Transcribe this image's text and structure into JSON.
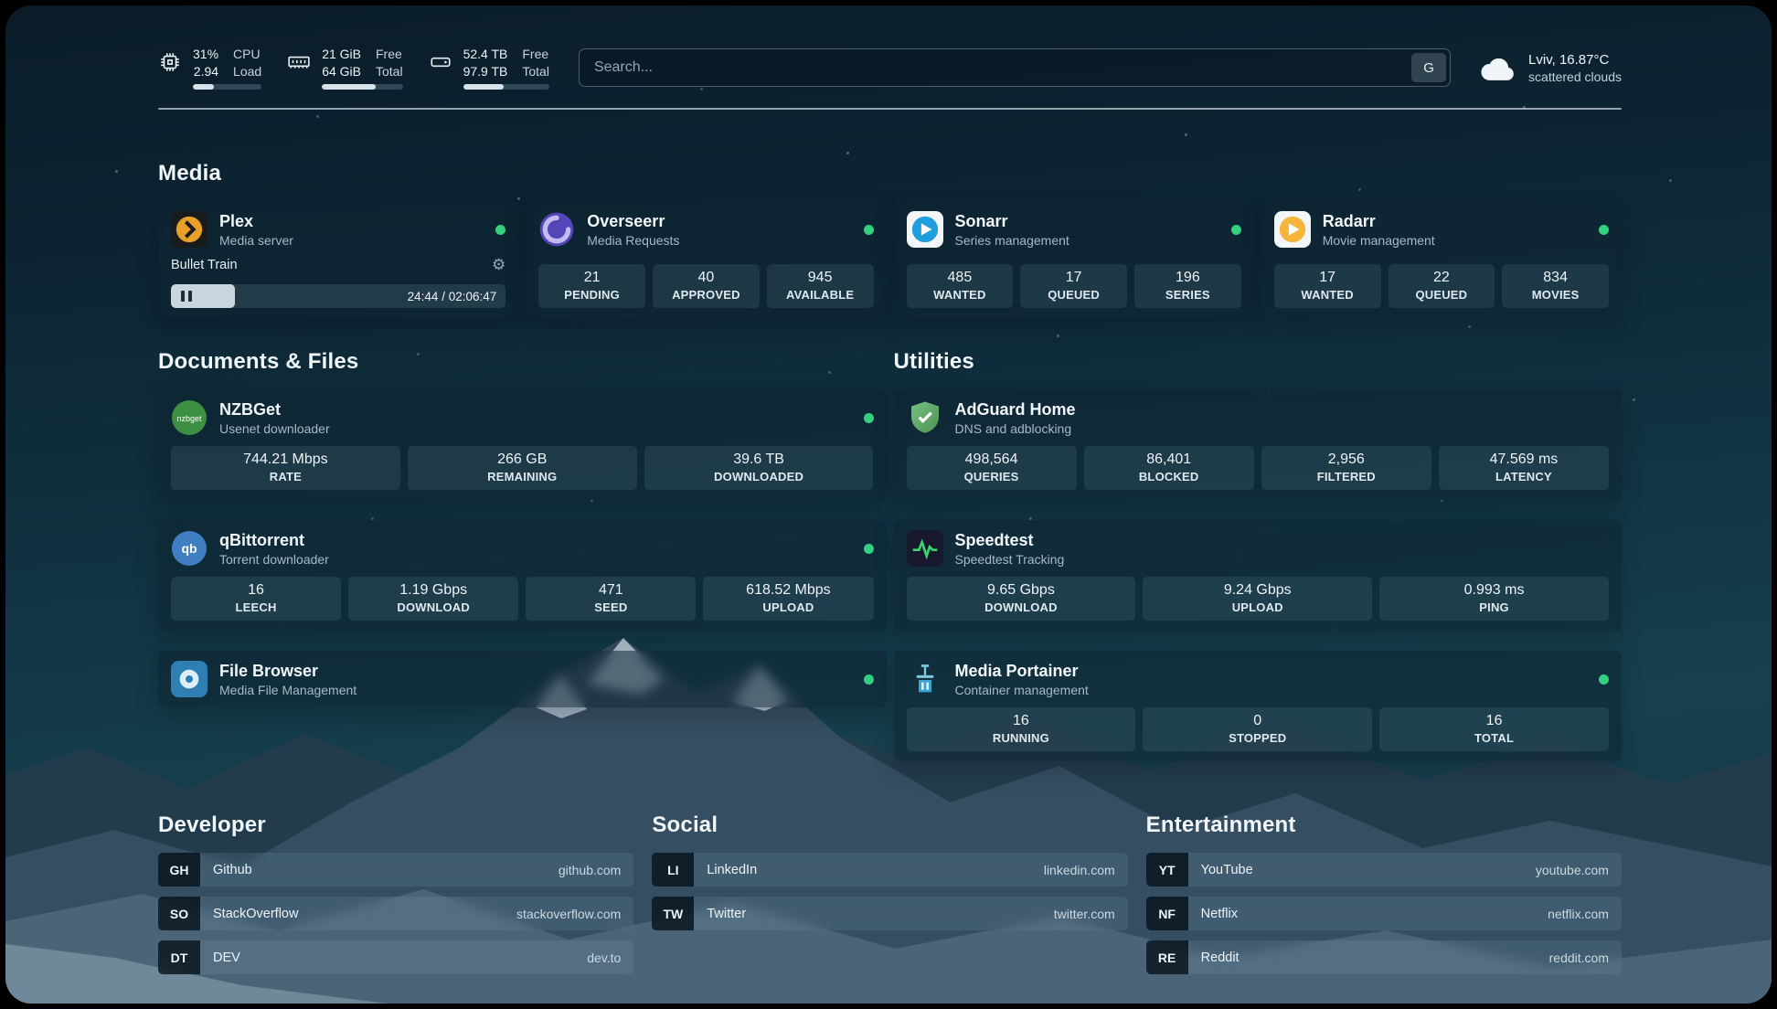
{
  "colors": {
    "status_online": "#35d07f"
  },
  "header": {
    "cpu": {
      "percent": "31%",
      "load": "2.94",
      "percent_label": "CPU",
      "load_label": "Load",
      "bar_percent": 31
    },
    "memory": {
      "free": "21 GiB",
      "total": "64 GiB",
      "free_label": "Free",
      "total_label": "Total",
      "bar_percent": 67
    },
    "disk": {
      "free": "52.4 TB",
      "total": "97.9 TB",
      "free_label": "Free",
      "total_label": "Total",
      "bar_percent": 47
    },
    "search": {
      "placeholder": "Search...",
      "button_label": "G"
    },
    "weather": {
      "location": "Lviv, 16.87°C",
      "condition": "scattered clouds"
    }
  },
  "media": {
    "title": "Media",
    "plex": {
      "name": "Plex",
      "description": "Media server",
      "now_playing": "Bullet Train",
      "time": "24:44 / 02:06:47",
      "progress_percent": 19
    },
    "overseerr": {
      "name": "Overseerr",
      "description": "Media Requests",
      "stats": [
        {
          "value": "21",
          "label": "PENDING"
        },
        {
          "value": "40",
          "label": "APPROVED"
        },
        {
          "value": "945",
          "label": "AVAILABLE"
        }
      ]
    },
    "sonarr": {
      "name": "Sonarr",
      "description": "Series management",
      "stats": [
        {
          "value": "485",
          "label": "WANTED"
        },
        {
          "value": "17",
          "label": "QUEUED"
        },
        {
          "value": "196",
          "label": "SERIES"
        }
      ]
    },
    "radarr": {
      "name": "Radarr",
      "description": "Movie management",
      "stats": [
        {
          "value": "17",
          "label": "WANTED"
        },
        {
          "value": "22",
          "label": "QUEUED"
        },
        {
          "value": "834",
          "label": "MOVIES"
        }
      ]
    }
  },
  "documents": {
    "title": "Documents & Files",
    "nzbget": {
      "name": "NZBGet",
      "description": "Usenet downloader",
      "icon_text": "nzbget",
      "stats": [
        {
          "value": "744.21 Mbps",
          "label": "RATE"
        },
        {
          "value": "266 GB",
          "label": "REMAINING"
        },
        {
          "value": "39.6 TB",
          "label": "DOWNLOADED"
        }
      ]
    },
    "qbittorrent": {
      "name": "qBittorrent",
      "description": "Torrent downloader",
      "icon_text": "qb",
      "stats": [
        {
          "value": "16",
          "label": "LEECH"
        },
        {
          "value": "1.19 Gbps",
          "label": "DOWNLOAD"
        },
        {
          "value": "471",
          "label": "SEED"
        },
        {
          "value": "618.52 Mbps",
          "label": "UPLOAD"
        }
      ]
    },
    "filebrowser": {
      "name": "File Browser",
      "description": "Media File Management"
    }
  },
  "utilities": {
    "title": "Utilities",
    "adguard": {
      "name": "AdGuard Home",
      "description": "DNS and adblocking",
      "stats": [
        {
          "value": "498,564",
          "label": "QUERIES"
        },
        {
          "value": "86,401",
          "label": "BLOCKED"
        },
        {
          "value": "2,956",
          "label": "FILTERED"
        },
        {
          "value": "47.569 ms",
          "label": "LATENCY"
        }
      ]
    },
    "speedtest": {
      "name": "Speedtest",
      "description": "Speedtest Tracking",
      "stats": [
        {
          "value": "9.65 Gbps",
          "label": "DOWNLOAD"
        },
        {
          "value": "9.24 Gbps",
          "label": "UPLOAD"
        },
        {
          "value": "0.993 ms",
          "label": "PING"
        }
      ]
    },
    "portainer": {
      "name": "Media Portainer",
      "description": "Container management",
      "stats": [
        {
          "value": "16",
          "label": "RUNNING"
        },
        {
          "value": "0",
          "label": "STOPPED"
        },
        {
          "value": "16",
          "label": "TOTAL"
        }
      ]
    }
  },
  "bookmarks": {
    "developer": {
      "title": "Developer",
      "items": [
        {
          "abbr": "GH",
          "name": "Github",
          "url": "github.com"
        },
        {
          "abbr": "SO",
          "name": "StackOverflow",
          "url": "stackoverflow.com"
        },
        {
          "abbr": "DT",
          "name": "DEV",
          "url": "dev.to"
        }
      ]
    },
    "social": {
      "title": "Social",
      "items": [
        {
          "abbr": "LI",
          "name": "LinkedIn",
          "url": "linkedin.com"
        },
        {
          "abbr": "TW",
          "name": "Twitter",
          "url": "twitter.com"
        }
      ]
    },
    "entertainment": {
      "title": "Entertainment",
      "items": [
        {
          "abbr": "YT",
          "name": "YouTube",
          "url": "youtube.com"
        },
        {
          "abbr": "NF",
          "name": "Netflix",
          "url": "netflix.com"
        },
        {
          "abbr": "RE",
          "name": "Reddit",
          "url": "reddit.com"
        }
      ]
    }
  }
}
